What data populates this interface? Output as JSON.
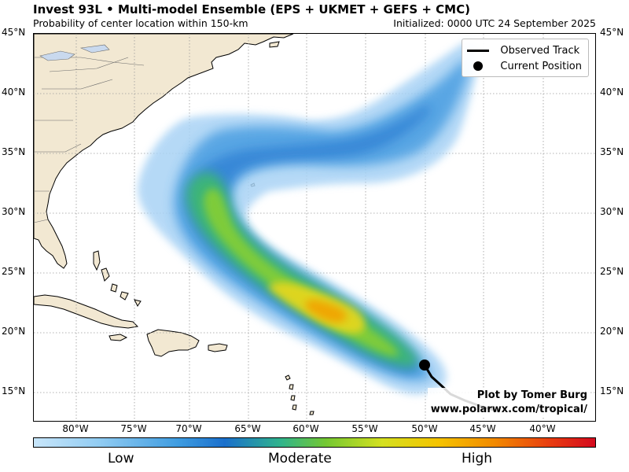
{
  "header": {
    "title": "Invest 93L • Multi-model Ensemble (EPS + UKMET + GEFS + CMC)",
    "subtitle": "Probability of center location within 150-km",
    "initialized": "Initialized: 0000 UTC 24 September 2025"
  },
  "map": {
    "lat_labels": [
      "45°N",
      "40°N",
      "35°N",
      "30°N",
      "25°N",
      "20°N",
      "15°N"
    ],
    "lon_labels": [
      "80°W",
      "75°W",
      "70°W",
      "65°W",
      "60°W",
      "55°W",
      "50°W",
      "45°W",
      "40°W"
    ],
    "current_position": {
      "lat": 17.2,
      "lon": -50.2
    },
    "colors": {
      "land": "#f2e8d2",
      "ocean": "#ffffff",
      "grid": "#9a9a9a"
    }
  },
  "legend": {
    "observed_track": "Observed Track",
    "current_position": "Current Position"
  },
  "credit": {
    "line1": "Plot by Tomer Burg",
    "line2": "www.polarwx.com/tropical/"
  },
  "colorbar": {
    "low": "Low",
    "moderate": "Moderate",
    "high": "High"
  }
}
